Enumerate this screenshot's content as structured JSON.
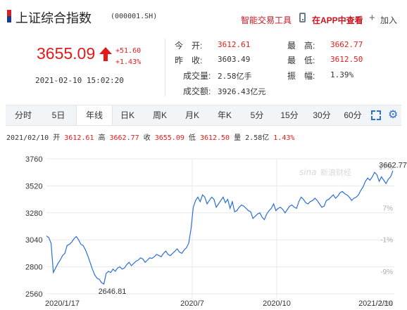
{
  "header": {
    "title": "上证综合指数",
    "code": "(000001.SH)",
    "tools_link": "智能交易工具",
    "app_link": "在APP中查看",
    "add_label": "加入"
  },
  "quote": {
    "price": "3655.09",
    "change": "+51.60",
    "change_pct": "+1.43%",
    "datetime": "2021-02-10 15:02:20",
    "up_color": "#e41a1a",
    "down_color": "#179917",
    "fields": {
      "open_label": "今　开:",
      "open": "3612.61",
      "prev_close_label": "昨　收:",
      "prev_close": "3603.49",
      "high_label": "最　高:",
      "high": "3662.77",
      "low_label": "最　低:",
      "low": "3612.50",
      "volume_label": "成交量:",
      "volume": "2.58亿手",
      "amplitude_label": "振　幅:",
      "amplitude": "1.39%",
      "amount_label": "成交额:",
      "amount": "3926.43亿元"
    }
  },
  "tabs": [
    "分时",
    "5日",
    "年线",
    "日K",
    "周K",
    "月K",
    "年K",
    "5分",
    "15分",
    "30分",
    "60分"
  ],
  "active_tab": "年线",
  "icons": [
    "fullscreen-icon",
    "settings-icon",
    "phone-icon",
    "plus-icon",
    "up-arrow-icon"
  ],
  "info_bar": {
    "date": "2021/02/10",
    "open_label": "开",
    "open": "3612.61",
    "high_label": "高",
    "high": "3662.77",
    "close_label": "收",
    "close": "3655.09",
    "low_label": "低",
    "low": "3612.50",
    "vol_label": "量",
    "vol": "2.58亿",
    "pct": "1.43%"
  },
  "chart_data": {
    "type": "line",
    "x_tick_labels": [
      "2020/1/17",
      "2020/7",
      "2020/10",
      "2021/2/10"
    ],
    "y_ticks_left": [
      3760,
      3520,
      3280,
      3040,
      2800,
      2560
    ],
    "y_ticks_right": [
      "17%",
      "7%",
      "-1%",
      "-9%",
      "-17%"
    ],
    "ylim": [
      2560,
      3760
    ],
    "max_label": "3662.77",
    "min_label": "2646.81",
    "watermark": "新浪财经",
    "line_color": "#2b6fd6",
    "grid": true,
    "series": [
      {
        "values": [
          3075,
          3060,
          3010,
          2750,
          2790,
          2830,
          2860,
          2900,
          2920,
          2990,
          3000,
          3020,
          3050,
          3070,
          3040,
          3000,
          2990,
          2950,
          2900,
          2840,
          2780,
          2730,
          2700,
          2690,
          2660,
          2647,
          2740,
          2760,
          2750,
          2780,
          2760,
          2790,
          2800,
          2780,
          2790,
          2820,
          2840,
          2810,
          2830,
          2850,
          2860,
          2880,
          2870,
          2840,
          2860,
          2880,
          2875,
          2890,
          2910,
          2900,
          2890,
          2920,
          2940,
          2910,
          2900,
          2920,
          2940,
          2960,
          2930,
          2920,
          2950,
          2970,
          3010,
          3140,
          3330,
          3390,
          3420,
          3380,
          3440,
          3420,
          3360,
          3390,
          3420,
          3400,
          3330,
          3360,
          3390,
          3420,
          3370,
          3400,
          3320,
          3380,
          3290,
          3300,
          3330,
          3350,
          3340,
          3320,
          3300,
          3290,
          3230,
          3250,
          3270,
          3280,
          3240,
          3220,
          3270,
          3300,
          3320,
          3360,
          3300,
          3320,
          3330,
          3310,
          3280,
          3310,
          3340,
          3350,
          3330,
          3320,
          3380,
          3420,
          3400,
          3370,
          3360,
          3380,
          3390,
          3410,
          3390,
          3360,
          3330,
          3340,
          3390,
          3400,
          3420,
          3440,
          3410,
          3430,
          3460,
          3470,
          3450,
          3440,
          3420,
          3390,
          3410,
          3420,
          3440,
          3480,
          3510,
          3560,
          3590,
          3570,
          3600,
          3640,
          3620,
          3560,
          3600,
          3570,
          3540,
          3580,
          3600,
          3655
        ]
      }
    ]
  }
}
